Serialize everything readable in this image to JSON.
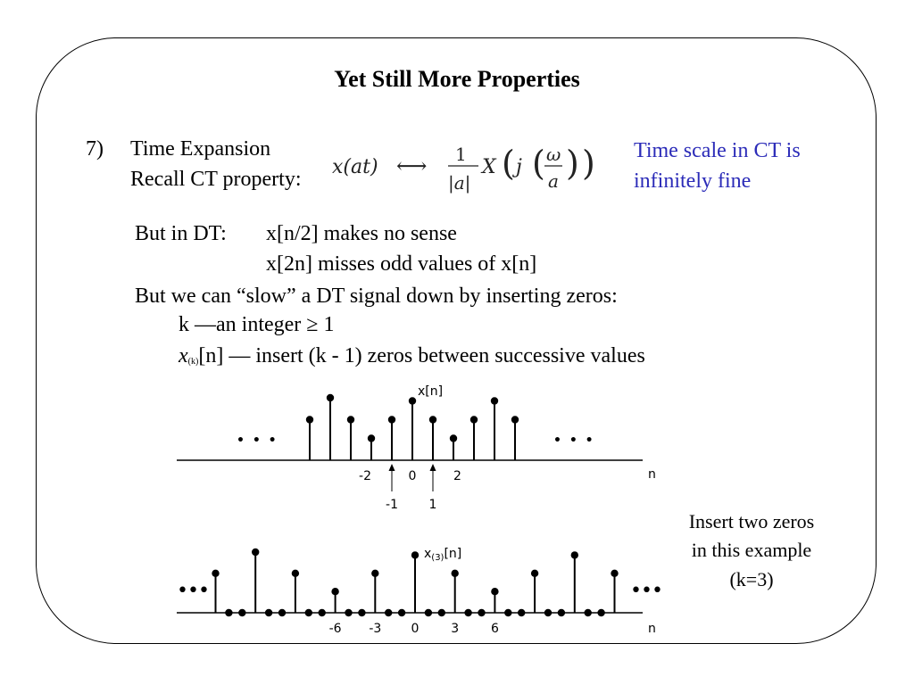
{
  "slide": {
    "title": "Yet Still More Properties",
    "item_number": "7)",
    "item_title": "Time Expansion",
    "recall": "Recall CT property:",
    "formula": {
      "lhs": "x(at)",
      "arrow": "⟷",
      "numerator": "1",
      "denominator": "|a|",
      "rhs_X": "X",
      "rhs_j": "j",
      "omega": "ω",
      "a": "a"
    },
    "note_line1": "Time scale in CT is",
    "note_line2": "infinitely fine",
    "dt_label": "But in DT:",
    "dt_line1": "x[n/2] makes no sense",
    "dt_line2": "x[2n] misses odd values of x[n]",
    "slow_line": "But we can “slow” a DT signal down by inserting zeros:",
    "k_line": "k —an integer ≥ 1",
    "xk_line_rest": "[n] — insert (k - 1) zeros between successive values",
    "xk_x": "x",
    "xk_sub": "(k)",
    "side_note_line1": "Insert two zeros",
    "side_note_line2": "in this example",
    "side_note_line3": "(k=3)"
  },
  "chart_data": [
    {
      "type": "stem",
      "title": "x[n]",
      "xlabel": "n",
      "n": [
        -5,
        -4,
        -3,
        -2,
        -1,
        0,
        1,
        2,
        3,
        4,
        5
      ],
      "values": [
        0.65,
        1.0,
        0.65,
        0.35,
        0.65,
        0.95,
        0.65,
        0.35,
        0.65,
        0.95,
        0.65
      ],
      "tick_labels_above_axis": [
        {
          "n": -2,
          "label": "-2"
        },
        {
          "n": 0,
          "label": "0"
        },
        {
          "n": 2,
          "label": "2"
        }
      ],
      "arrow_labels_below": [
        {
          "n": -1,
          "label": "-1"
        },
        {
          "n": 1,
          "label": "1"
        }
      ],
      "left_ellipsis": "• • •",
      "right_ellipsis": "• • •"
    },
    {
      "type": "stem",
      "title": "x(3)[n]",
      "title_main": "x",
      "title_sub": "(3)",
      "title_tail": "[n]",
      "xlabel": "n",
      "n": [
        -15,
        -14,
        -13,
        -12,
        -11,
        -10,
        -9,
        -8,
        -7,
        -6,
        -5,
        -4,
        -3,
        -2,
        -1,
        0,
        1,
        2,
        3,
        4,
        5,
        6,
        7,
        8,
        9,
        10,
        11,
        12,
        13,
        14,
        15
      ],
      "values": [
        0.65,
        0,
        0,
        1.0,
        0,
        0,
        0.65,
        0,
        0,
        0.35,
        0,
        0,
        0.65,
        0,
        0,
        0.95,
        0,
        0,
        0.65,
        0,
        0,
        0.35,
        0,
        0,
        0.65,
        0,
        0,
        0.95,
        0,
        0,
        0.65
      ],
      "tick_labels": [
        {
          "n": -6,
          "label": "-6"
        },
        {
          "n": -3,
          "label": "-3"
        },
        {
          "n": 0,
          "label": "0"
        },
        {
          "n": 3,
          "label": "3"
        },
        {
          "n": 6,
          "label": "6"
        }
      ],
      "left_ellipsis": "•••",
      "right_ellipsis": "•••"
    }
  ]
}
